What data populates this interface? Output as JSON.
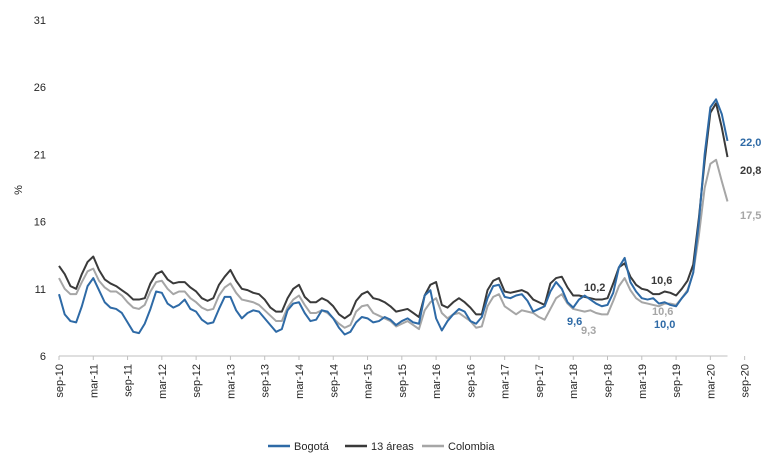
{
  "chart_data": {
    "type": "line",
    "ylabel": "%",
    "ylim": [
      6,
      31
    ],
    "yticks": [
      "31",
      "26",
      "21",
      "16",
      "11",
      "6"
    ],
    "ytick_values": [
      31,
      26,
      21,
      16,
      11,
      6
    ],
    "x_tick_labels": [
      "sep-10",
      "mar-11",
      "sep-11",
      "mar-12",
      "sep-12",
      "mar-13",
      "sep-13",
      "mar-14",
      "sep-14",
      "mar-15",
      "sep-15",
      "mar-16",
      "sep-16",
      "mar-17",
      "sep-17",
      "mar-18",
      "sep-18",
      "mar-19",
      "sep-19",
      "mar-20",
      "sep-20"
    ],
    "legend_position": "bottom",
    "series": [
      {
        "name": "Bogotá",
        "color": "#2e6aa6",
        "values": [
          10.6,
          9.1,
          8.6,
          8.5,
          9.7,
          11.2,
          11.8,
          10.9,
          10.0,
          9.6,
          9.5,
          9.2,
          8.5,
          7.8,
          7.7,
          8.4,
          9.5,
          10.8,
          10.7,
          9.9,
          9.6,
          9.8,
          10.2,
          9.5,
          9.3,
          8.7,
          8.4,
          8.5,
          9.5,
          10.4,
          10.4,
          9.4,
          8.8,
          9.2,
          9.4,
          9.3,
          8.8,
          8.3,
          7.8,
          8.0,
          9.4,
          9.9,
          10.0,
          9.2,
          8.6,
          8.7,
          9.4,
          9.3,
          8.8,
          8.1,
          7.6,
          7.8,
          8.5,
          8.9,
          8.8,
          8.5,
          8.6,
          8.9,
          8.7,
          8.3,
          8.6,
          8.8,
          8.5,
          8.4,
          10.5,
          10.9,
          8.8,
          7.9,
          8.6,
          9.1,
          9.5,
          9.3,
          8.6,
          8.4,
          8.9,
          10.3,
          11.2,
          11.3,
          10.4,
          10.3,
          10.5,
          10.6,
          10.1,
          9.3,
          9.5,
          9.7,
          10.8,
          11.5,
          11.0,
          10.0,
          9.6,
          10.2,
          10.5,
          10.2,
          9.9,
          9.7,
          9.8,
          10.7,
          12.6,
          13.3,
          11.5,
          10.8,
          10.3,
          10.2,
          10.3,
          9.9,
          10.0,
          9.8,
          9.7,
          10.3,
          10.8,
          12.2,
          16.0,
          21.0,
          24.5,
          25.1,
          24.0,
          22.0
        ],
        "end_label": "22,0",
        "annotations": [
          {
            "label": "9,6",
            "x_label": "sep-18"
          },
          {
            "label": "10,0",
            "x_label": "sep-19"
          }
        ]
      },
      {
        "name": "13 áreas",
        "color": "#3a3a3a",
        "values": [
          12.7,
          12.1,
          11.2,
          11.0,
          12.1,
          13.0,
          13.4,
          12.4,
          11.7,
          11.4,
          11.2,
          10.9,
          10.6,
          10.2,
          10.2,
          10.3,
          11.4,
          12.1,
          12.3,
          11.7,
          11.4,
          11.5,
          11.5,
          11.1,
          10.8,
          10.3,
          10.1,
          10.3,
          11.3,
          11.9,
          12.4,
          11.6,
          11.0,
          10.9,
          10.7,
          10.6,
          10.2,
          9.6,
          9.3,
          9.3,
          10.3,
          11.0,
          11.3,
          10.4,
          10.0,
          10.0,
          10.3,
          10.1,
          9.7,
          9.1,
          8.8,
          9.1,
          10.1,
          10.6,
          10.8,
          10.3,
          10.2,
          10.0,
          9.7,
          9.3,
          9.4,
          9.5,
          9.2,
          8.9,
          10.5,
          11.3,
          11.5,
          9.8,
          9.6,
          10.0,
          10.3,
          10.0,
          9.6,
          9.1,
          9.1,
          10.9,
          11.6,
          11.8,
          10.8,
          10.7,
          10.8,
          10.9,
          10.7,
          10.2,
          10.0,
          9.8,
          11.4,
          11.8,
          11.9,
          11.1,
          10.5,
          10.5,
          10.4,
          10.3,
          10.2,
          10.2,
          10.3,
          11.4,
          12.6,
          12.9,
          11.9,
          11.3,
          11.0,
          10.9,
          10.6,
          10.6,
          10.8,
          10.7,
          10.5,
          11.0,
          11.6,
          12.8,
          16.3,
          20.5,
          24.1,
          24.8,
          23.0,
          20.8
        ],
        "end_label": "20,8",
        "annotations": [
          {
            "label": "10,2",
            "x_label": "sep-18"
          },
          {
            "label": "10,6",
            "x_label": "sep-19"
          }
        ]
      },
      {
        "name": "Colombia",
        "color": "#a6a6a6",
        "values": [
          11.8,
          11.0,
          10.6,
          10.6,
          11.5,
          12.3,
          12.5,
          11.6,
          11.1,
          10.8,
          10.8,
          10.5,
          10.0,
          9.6,
          9.5,
          9.8,
          10.8,
          11.5,
          11.6,
          11.0,
          10.6,
          10.8,
          10.8,
          10.3,
          10.0,
          9.6,
          9.4,
          9.5,
          10.5,
          11.1,
          11.4,
          10.7,
          10.2,
          10.1,
          10.0,
          9.8,
          9.4,
          9.0,
          8.6,
          8.6,
          9.6,
          10.2,
          10.5,
          9.8,
          9.2,
          9.2,
          9.4,
          9.2,
          8.8,
          8.4,
          8.1,
          8.3,
          9.3,
          9.7,
          9.8,
          9.2,
          9.0,
          8.8,
          8.6,
          8.2,
          8.4,
          8.6,
          8.3,
          8.0,
          9.4,
          10.0,
          10.3,
          9.2,
          8.8,
          9.1,
          9.2,
          8.9,
          8.6,
          8.1,
          8.2,
          9.7,
          10.4,
          10.6,
          9.7,
          9.4,
          9.1,
          9.4,
          9.3,
          9.2,
          8.9,
          8.7,
          9.5,
          10.3,
          10.6,
          9.9,
          9.5,
          9.4,
          9.3,
          9.4,
          9.2,
          9.1,
          9.1,
          10.1,
          11.2,
          11.8,
          10.9,
          10.3,
          10.0,
          9.9,
          9.8,
          9.7,
          9.9,
          9.9,
          9.8,
          10.3,
          10.9,
          12.2,
          15.0,
          18.5,
          20.3,
          20.6,
          19.0,
          17.5
        ],
        "end_label": "17,5",
        "annotations": [
          {
            "label": "9,3",
            "x_label": "sep-18"
          },
          {
            "label": "10,6",
            "x_label": "sep-19"
          }
        ]
      }
    ]
  }
}
